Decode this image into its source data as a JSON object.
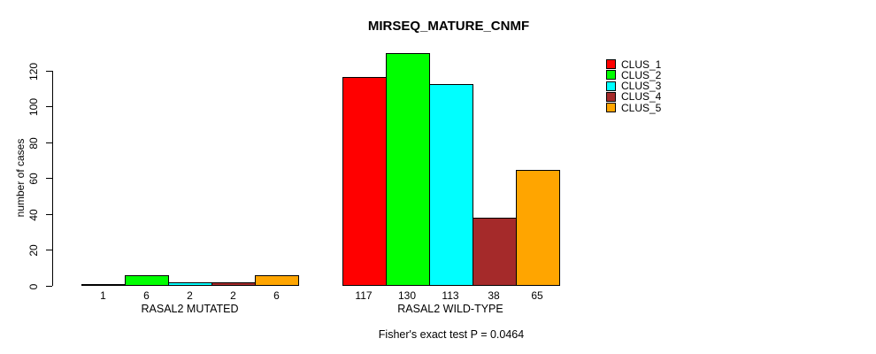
{
  "title": "MIRSEQ_MATURE_CNMF",
  "ylabel": "number of cases",
  "annotation": "Fisher's exact test P = 0.0464",
  "legend": {
    "position": "right",
    "entries": [
      {
        "label": "CLUS_1",
        "color": "#FF0000"
      },
      {
        "label": "CLUS_2",
        "color": "#00FF00"
      },
      {
        "label": "CLUS_3",
        "color": "#00FFFF"
      },
      {
        "label": "CLUS_4",
        "color": "#A52A2A"
      },
      {
        "label": "CLUS_5",
        "color": "#FFA500"
      }
    ]
  },
  "chart_data": {
    "type": "bar",
    "title": "MIRSEQ_MATURE_CNMF",
    "xlabel": "",
    "ylabel": "number of cases",
    "categories": [
      "RASAL2 MUTATED",
      "RASAL2 WILD-TYPE"
    ],
    "series": [
      {
        "name": "CLUS_1",
        "color": "#FF0000",
        "values": [
          1,
          117
        ]
      },
      {
        "name": "CLUS_2",
        "color": "#00FF00",
        "values": [
          6,
          130
        ]
      },
      {
        "name": "CLUS_3",
        "color": "#00FFFF",
        "values": [
          2,
          113
        ]
      },
      {
        "name": "CLUS_4",
        "color": "#A52A2A",
        "values": [
          2,
          38
        ]
      },
      {
        "name": "CLUS_5",
        "color": "#FFA500",
        "values": [
          6,
          65
        ]
      }
    ],
    "bar_value_labels": [
      [
        "1",
        "6",
        "2",
        "2",
        "6"
      ],
      [
        "117",
        "130",
        "113",
        "38",
        "65"
      ]
    ],
    "ylim": [
      0,
      130
    ],
    "yticks": [
      0,
      20,
      40,
      60,
      80,
      100,
      120
    ],
    "grid": false,
    "legend_position": "right",
    "annotation": "Fisher's exact test P = 0.0464"
  }
}
